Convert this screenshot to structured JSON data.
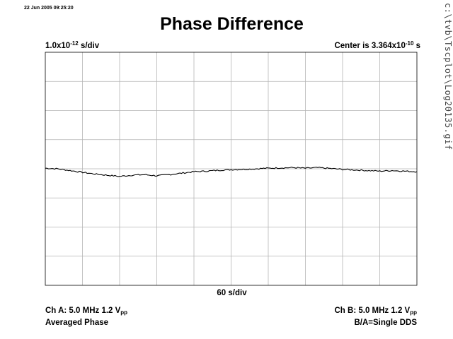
{
  "timestamp": "22 Jun 2005 09:25:20",
  "title": "Phase Difference",
  "scale": {
    "mantissa": "1.0x10",
    "exponent": "-12",
    "unit": " s/div"
  },
  "center": {
    "prefix": "Center is 3.364x10",
    "exponent": "-10",
    "unit": " s"
  },
  "side_path": "c:\\tvb\\Tscplot\\Log20135.gif",
  "x_scale": "60 s/div",
  "channel_a": {
    "line1_main": "Ch A: 5.0 MHz 1.2 V",
    "line1_sub": "pp",
    "line2": "Averaged Phase"
  },
  "channel_b": {
    "line1_main": "Ch B: 5.0 MHz 1.2 V",
    "line1_sub": "pp",
    "line2": "B/A=Single DDS"
  },
  "chart_data": {
    "type": "line",
    "xlabel": "60 s/div",
    "ylabel": "",
    "x_divisions": 10,
    "y_divisions": 8,
    "xlim": [
      0,
      600
    ],
    "ylim": [
      -4,
      4
    ],
    "grid": true,
    "series": [
      {
        "color": "#000000",
        "x": [
          0,
          20,
          40,
          60,
          80,
          100,
          120,
          140,
          160,
          180,
          200,
          220,
          240,
          260,
          280,
          300,
          320,
          340,
          360,
          380,
          400,
          420,
          440,
          460,
          480,
          500,
          520,
          540,
          560,
          580,
          600
        ],
        "y": [
          0.02,
          0.0,
          -0.06,
          -0.12,
          -0.18,
          -0.22,
          -0.26,
          -0.22,
          -0.2,
          -0.24,
          -0.2,
          -0.15,
          -0.1,
          -0.08,
          -0.05,
          -0.03,
          -0.02,
          0.0,
          0.02,
          0.03,
          0.04,
          0.02,
          0.04,
          0.01,
          -0.02,
          -0.04,
          -0.06,
          -0.08,
          -0.06,
          -0.08,
          -0.1
        ]
      }
    ]
  }
}
